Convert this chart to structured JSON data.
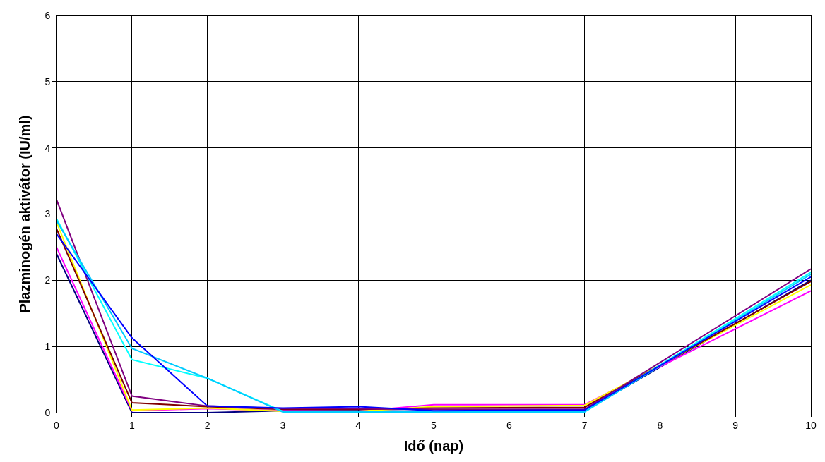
{
  "chart_data": {
    "type": "line",
    "xlabel": "Idő (nap)",
    "ylabel": "Plazminogén aktivátor (IU/ml)",
    "x": [
      0,
      1,
      2,
      3,
      4,
      5,
      7,
      10
    ],
    "series": [
      {
        "color": "#000080",
        "values": [
          2.4,
          0.0,
          0.0,
          0.03,
          0.03,
          0.02,
          0.03,
          2.0
        ]
      },
      {
        "color": "#ff00ff",
        "values": [
          2.5,
          0.03,
          0.06,
          0.03,
          0.02,
          0.12,
          0.12,
          1.84
        ]
      },
      {
        "color": "#ffff00",
        "values": [
          2.88,
          0.04,
          0.07,
          0.02,
          0.02,
          0.09,
          0.11,
          1.93
        ]
      },
      {
        "color": "#800000",
        "values": [
          2.78,
          0.15,
          0.09,
          0.05,
          0.05,
          0.07,
          0.08,
          1.98
        ]
      },
      {
        "color": "#800080",
        "values": [
          3.22,
          0.25,
          0.1,
          0.06,
          0.06,
          0.05,
          0.05,
          2.17
        ]
      },
      {
        "color": "#00ffff",
        "values": [
          2.93,
          0.8,
          0.52,
          0.02,
          0.02,
          0.02,
          0.02,
          2.12
        ]
      },
      {
        "color": "#00ccff",
        "values": [
          2.9,
          0.97,
          0.52,
          0.01,
          0.01,
          0.01,
          0.01,
          2.09
        ]
      },
      {
        "color": "#0000ff",
        "values": [
          2.7,
          1.13,
          0.1,
          0.07,
          0.09,
          0.03,
          0.04,
          2.05
        ]
      }
    ],
    "xlim": [
      0,
      10
    ],
    "xticks": [
      0,
      1,
      2,
      3,
      4,
      5,
      6,
      7,
      8,
      9,
      10
    ],
    "ylim": [
      0,
      6
    ],
    "yticks": [
      0,
      1,
      2,
      3,
      4,
      5,
      6
    ],
    "grid": true,
    "marker": "none",
    "line_style": "solid"
  }
}
